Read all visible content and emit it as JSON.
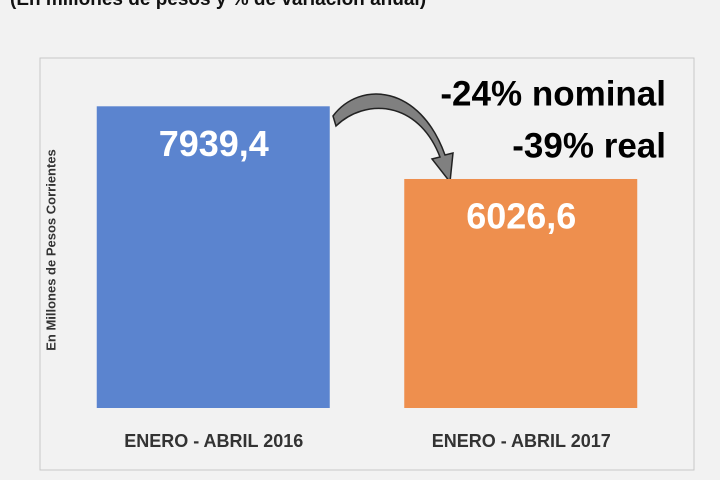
{
  "chart_data": {
    "type": "bar",
    "title": "(En millones de pesos y % de variación anual)",
    "y_label": "En Millones de Pesos Corrientes",
    "categories": [
      "ENERO - ABRIL 2016",
      "ENERO - ABRIL 2017"
    ],
    "values": [
      7939.4,
      6026.6
    ],
    "value_labels": [
      "7939,4",
      "6026,6"
    ],
    "colors": [
      "#5b84cf",
      "#ee8f4e"
    ],
    "annotations": [
      "-24% nominal",
      "-39% real"
    ],
    "ylim": [
      0,
      9000
    ]
  }
}
